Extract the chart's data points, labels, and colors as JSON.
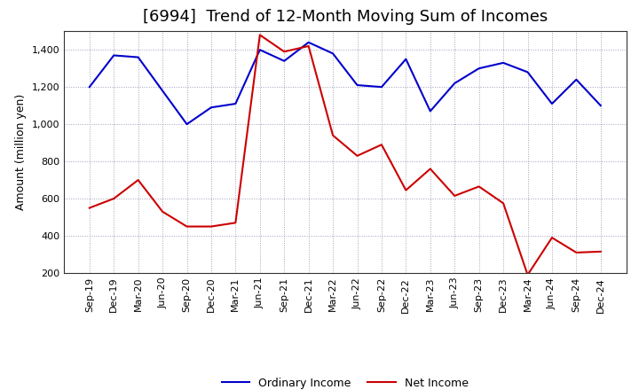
{
  "title": "[6994]  Trend of 12-Month Moving Sum of Incomes",
  "ylabel": "Amount (million yen)",
  "x_labels": [
    "Sep-19",
    "Dec-19",
    "Mar-20",
    "Jun-20",
    "Sep-20",
    "Dec-20",
    "Mar-21",
    "Jun-21",
    "Sep-21",
    "Dec-21",
    "Mar-22",
    "Jun-22",
    "Sep-22",
    "Dec-22",
    "Mar-23",
    "Jun-23",
    "Sep-23",
    "Dec-23",
    "Mar-24",
    "Jun-24",
    "Sep-24",
    "Dec-24"
  ],
  "ordinary_income": [
    1200,
    1370,
    1360,
    1180,
    1000,
    1090,
    1110,
    1400,
    1340,
    1440,
    1380,
    1210,
    1200,
    1350,
    1070,
    1220,
    1300,
    1330,
    1280,
    1110,
    1240,
    1100
  ],
  "net_income": [
    550,
    600,
    700,
    530,
    450,
    450,
    470,
    1480,
    1390,
    1420,
    940,
    830,
    890,
    645,
    760,
    615,
    665,
    575,
    190,
    390,
    310,
    315
  ],
  "ordinary_color": "#0000CC",
  "net_color": "#CC0000",
  "ylim": [
    200,
    1500
  ],
  "yticks": [
    200,
    400,
    600,
    800,
    1000,
    1200,
    1400
  ],
  "background_color": "#FFFFFF",
  "grid_color": "#8888AA",
  "title_fontsize": 13,
  "ylabel_fontsize": 9,
  "tick_fontsize": 8,
  "legend_fontsize": 9,
  "linewidth": 1.5
}
